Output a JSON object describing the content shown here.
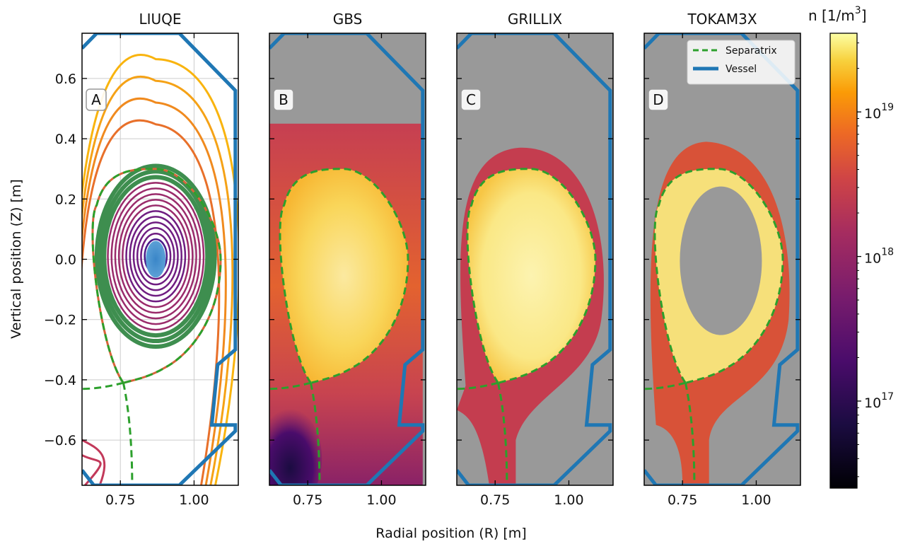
{
  "chart_data": {
    "type": "heatmap",
    "xlabel": "Radial position (R) [m]",
    "ylabel": "Vertical position (Z) [m]",
    "xlim": [
      0.62,
      1.15
    ],
    "ylim": [
      -0.75,
      0.75
    ],
    "x_ticks": [
      "0.75",
      "1.00"
    ],
    "y_ticks": [
      "0.6",
      "0.4",
      "0.2",
      "0.0",
      "−0.2",
      "−0.4",
      "−0.6"
    ],
    "x_tick_values": [
      0.75,
      1.0
    ],
    "y_tick_values": [
      0.6,
      0.4,
      0.2,
      0.0,
      -0.2,
      -0.4,
      -0.6
    ],
    "panels": [
      {
        "title": "LIUQE",
        "label": "A",
        "kind": "equilibrium"
      },
      {
        "title": "GBS",
        "label": "B",
        "kind": "density"
      },
      {
        "title": "GRILLIX",
        "label": "C",
        "kind": "density"
      },
      {
        "title": "TOKAM3X",
        "label": "D",
        "kind": "density"
      }
    ],
    "legend": {
      "placement": "top-right",
      "entries": [
        {
          "name": "Separatrix",
          "style": "dashed",
          "color": "#2ca02c"
        },
        {
          "name": "Vessel",
          "style": "solid",
          "color": "#1f77b4"
        }
      ]
    },
    "colorbar": {
      "title_prefix": "n [1/m",
      "title_sup": "3",
      "title_suffix": "]",
      "scale": "log",
      "range": [
        2.5e+16,
        3.5e+19
      ],
      "ticks": [
        {
          "value": 1e+17,
          "base": "10",
          "exp": "17"
        },
        {
          "value": 1e+18,
          "base": "10",
          "exp": "18"
        },
        {
          "value": 1e+19,
          "base": "10",
          "exp": "19"
        }
      ],
      "colormap": "inferno"
    },
    "separatrix": {
      "o_point": [
        0.87,
        0.0
      ],
      "x_point": [
        0.76,
        -0.41
      ],
      "top_z": 0.3,
      "outer_r": 1.09,
      "inner_r": 0.67
    },
    "colors": {
      "separatrix": "#2ca02c",
      "vessel": "#1f77b4",
      "background_gray": "#999999"
    }
  }
}
